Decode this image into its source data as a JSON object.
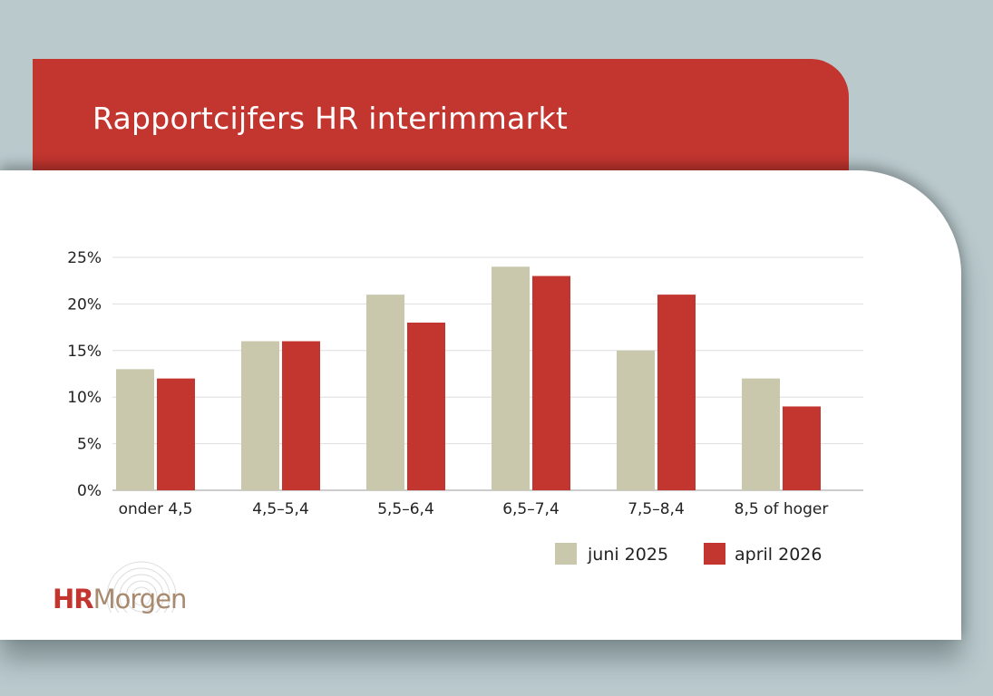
{
  "title": "Rapportcijfers HR interimmarkt",
  "logo": {
    "text_hr": "HR",
    "text_rest": "Morgen",
    "hr_color": "#c3352f",
    "rest_color": "#a88a6f"
  },
  "colors": {
    "header": "#c3352f",
    "background": "#b9c9cc",
    "card": "#ffffff"
  },
  "chart_data": {
    "type": "bar",
    "categories": [
      "onder 4,5",
      "4,5–5,4",
      "5,5–6,4",
      "6,5–7,4",
      "7,5–8,4",
      "8,5 of hoger"
    ],
    "series": [
      {
        "name": "juni 2025",
        "values": [
          13,
          16,
          21,
          24,
          15,
          12
        ],
        "color": "#c9c8ad"
      },
      {
        "name": "april 2026",
        "values": [
          12,
          16,
          18,
          23,
          21,
          9
        ],
        "color": "#c3352f"
      }
    ],
    "yticks": [
      "0%",
      "5%",
      "10%",
      "15%",
      "20%",
      "25%"
    ],
    "ylim": [
      0,
      25
    ],
    "grid": true,
    "legend": "bottom-right"
  }
}
